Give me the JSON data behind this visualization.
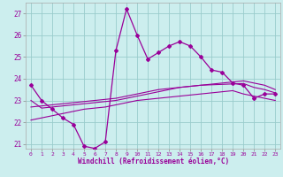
{
  "hours": [
    0,
    1,
    2,
    3,
    4,
    5,
    6,
    7,
    8,
    9,
    10,
    11,
    12,
    13,
    14,
    15,
    16,
    17,
    18,
    19,
    20,
    21,
    22,
    23
  ],
  "windchill": [
    23.7,
    23.0,
    22.6,
    22.2,
    21.9,
    20.9,
    20.8,
    21.1,
    25.3,
    27.2,
    26.0,
    24.9,
    25.2,
    25.5,
    25.7,
    25.5,
    25.0,
    24.4,
    24.3,
    23.8,
    23.7,
    23.1,
    23.3,
    23.3
  ],
  "line1": [
    23.0,
    22.65,
    22.7,
    22.75,
    22.8,
    22.85,
    22.9,
    22.95,
    23.0,
    23.1,
    23.2,
    23.3,
    23.4,
    23.5,
    23.6,
    23.65,
    23.7,
    23.75,
    23.8,
    23.85,
    23.9,
    23.8,
    23.7,
    23.5
  ],
  "line2": [
    22.7,
    22.75,
    22.8,
    22.85,
    22.9,
    22.95,
    23.0,
    23.05,
    23.1,
    23.2,
    23.3,
    23.4,
    23.5,
    23.55,
    23.6,
    23.65,
    23.7,
    23.72,
    23.74,
    23.76,
    23.78,
    23.6,
    23.5,
    23.35
  ],
  "line3": [
    22.1,
    22.2,
    22.3,
    22.4,
    22.5,
    22.6,
    22.65,
    22.7,
    22.8,
    22.9,
    23.0,
    23.05,
    23.1,
    23.15,
    23.2,
    23.25,
    23.3,
    23.35,
    23.4,
    23.45,
    23.3,
    23.2,
    23.1,
    23.0
  ],
  "line_color": "#990099",
  "bg_color": "#cceeee",
  "grid_color": "#99cccc",
  "xlabel": "Windchill (Refroidissement éolien,°C)",
  "ylim": [
    20.8,
    27.5
  ],
  "xlim": [
    -0.5,
    23.5
  ],
  "yticks": [
    21,
    22,
    23,
    24,
    25,
    26,
    27
  ],
  "xticks": [
    0,
    1,
    2,
    3,
    4,
    5,
    6,
    7,
    8,
    9,
    10,
    11,
    12,
    13,
    14,
    15,
    16,
    17,
    18,
    19,
    20,
    21,
    22,
    23
  ]
}
